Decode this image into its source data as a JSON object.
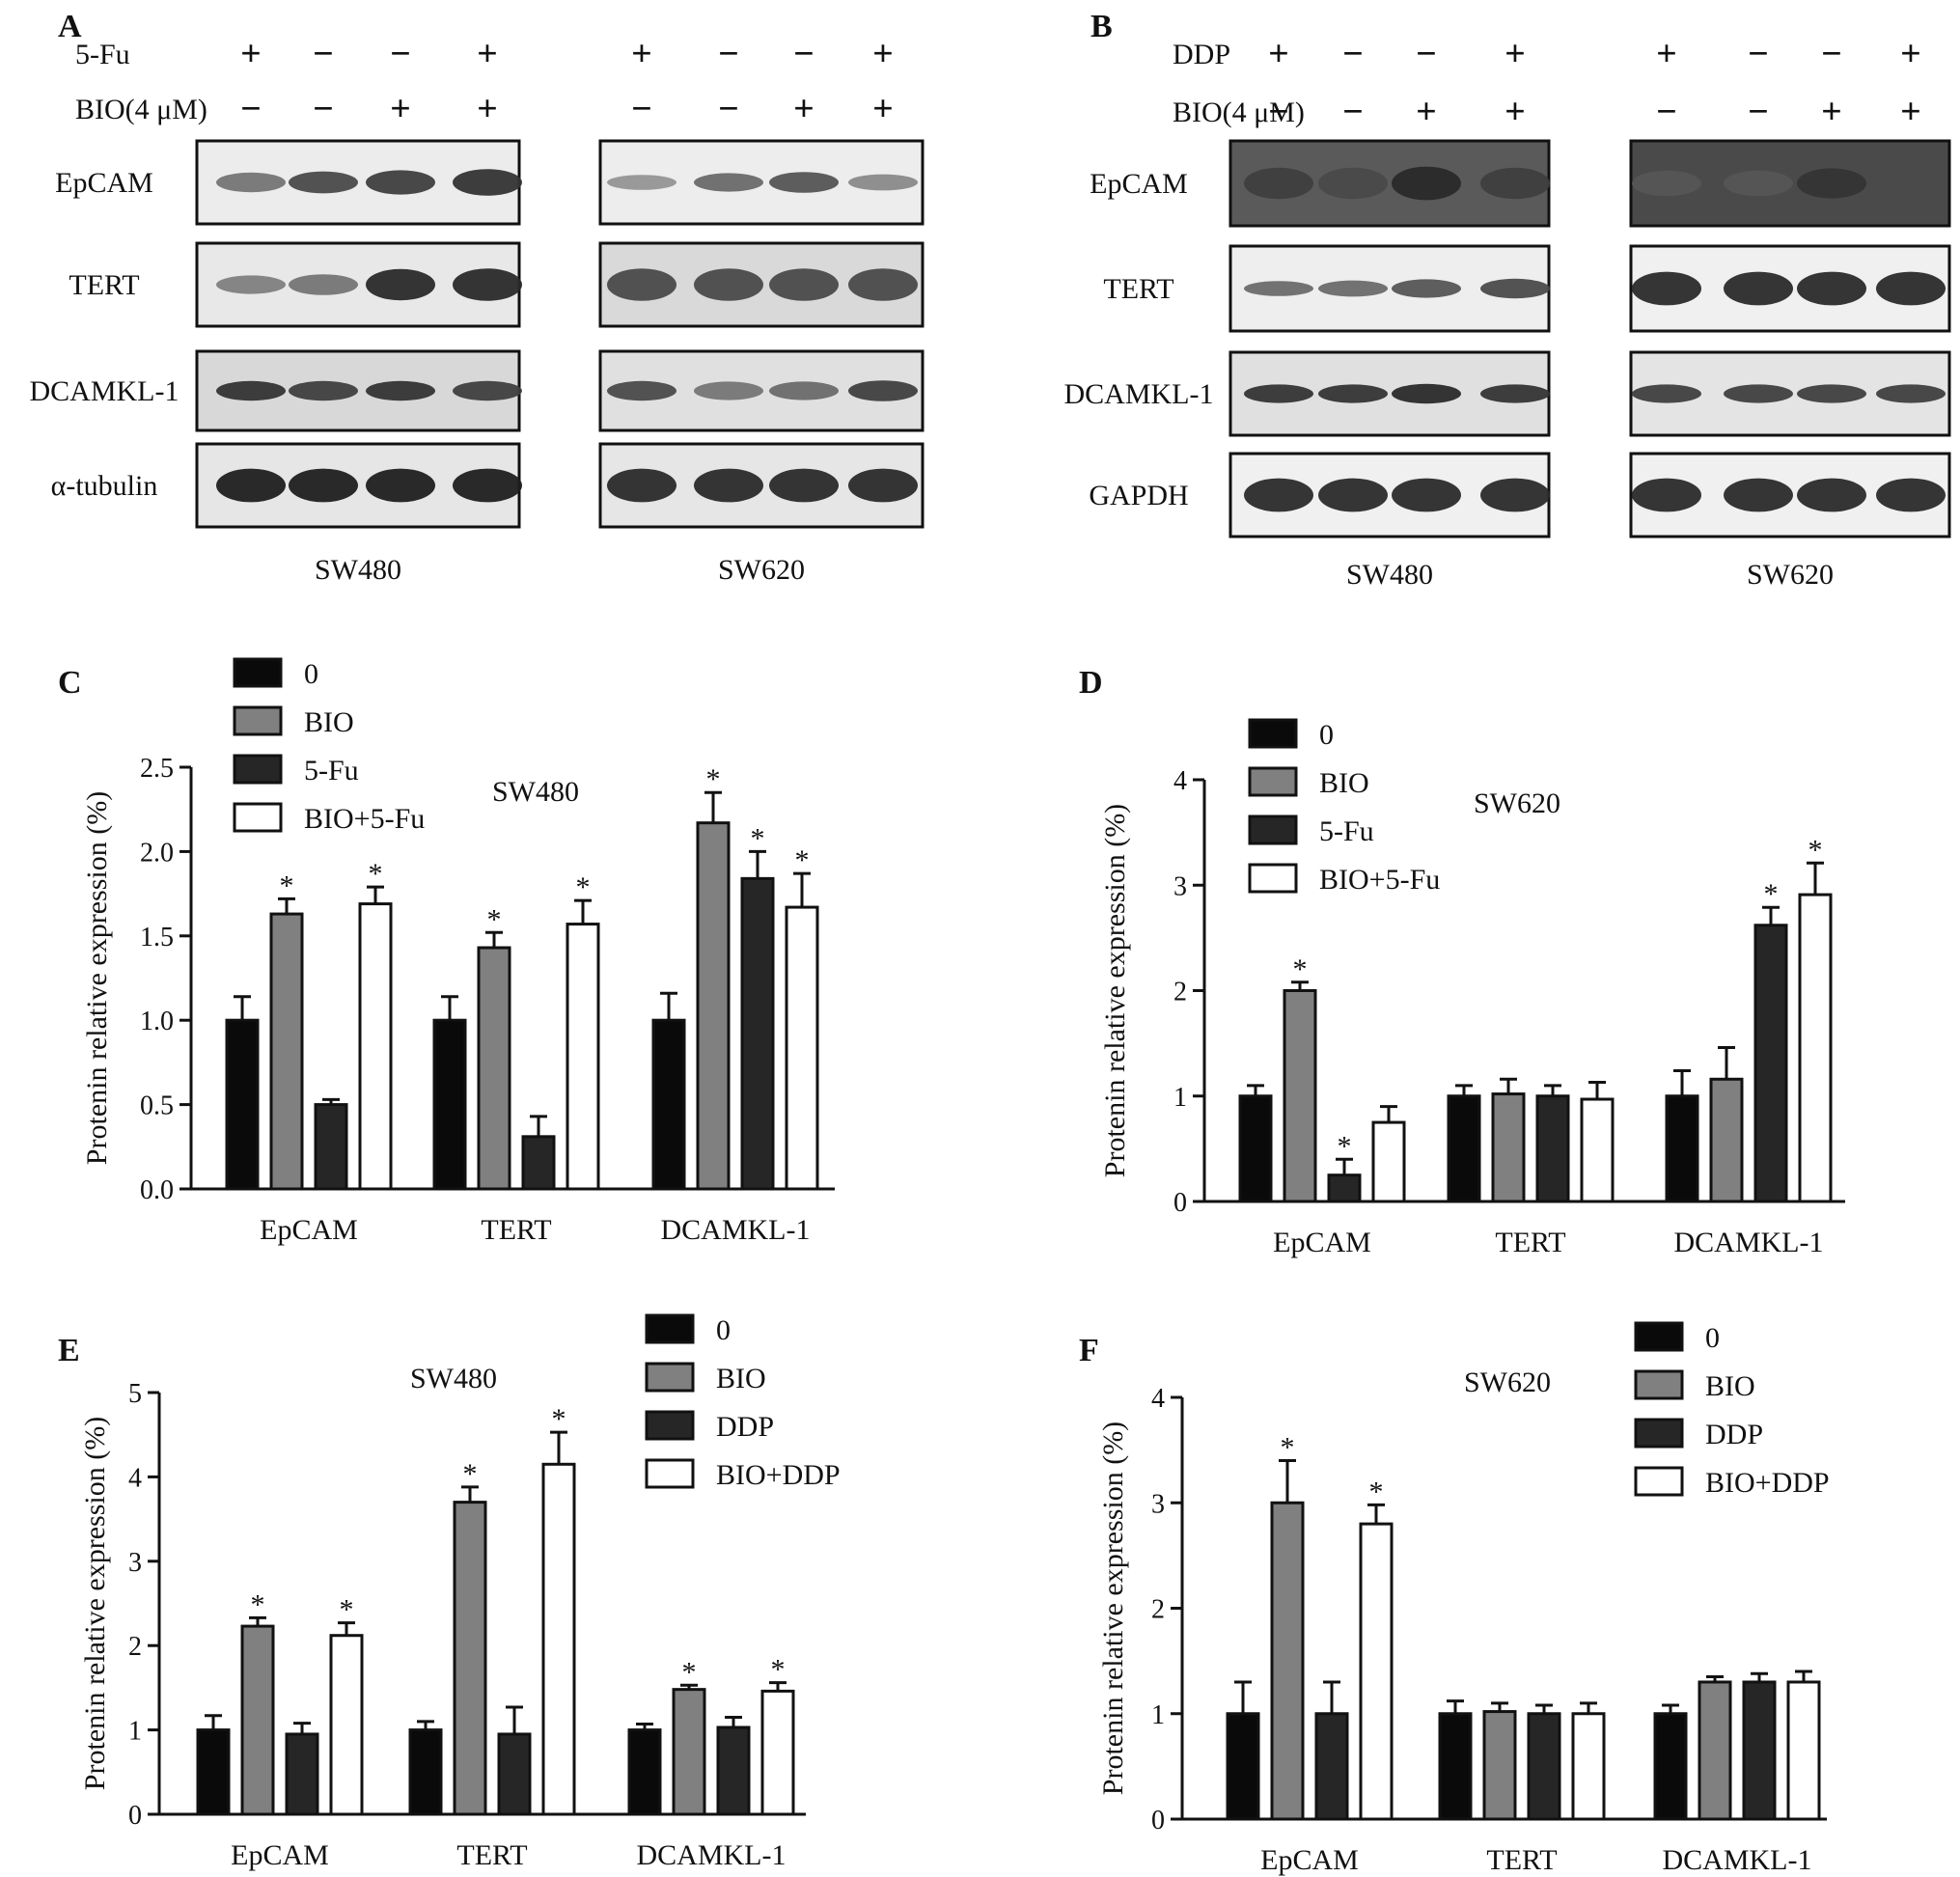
{
  "blots": {
    "A": {
      "letter": "A",
      "treatments": [
        {
          "label": "5-Fu",
          "left": [
            "+",
            "−",
            "−",
            "+"
          ],
          "right": [
            "+",
            "−",
            "−",
            "+"
          ]
        },
        {
          "label": "BIO(4 μM)",
          "left": [
            "−",
            "−",
            "+",
            "+"
          ],
          "right": [
            "−",
            "−",
            "+",
            "+"
          ]
        }
      ],
      "rows": [
        "EpCAM",
        "TERT",
        "DCAMKL-1",
        "α-tubulin"
      ],
      "cells": [
        "SW480",
        "SW620"
      ]
    },
    "B": {
      "letter": "B",
      "treatments": [
        {
          "label": "DDP",
          "left": [
            "+",
            "−",
            "−",
            "+"
          ],
          "right": [
            "+",
            "−",
            "−",
            "+"
          ]
        },
        {
          "label": "BIO(4 μM)",
          "left": [
            "−",
            "−",
            "+",
            "+"
          ],
          "right": [
            "−",
            "−",
            "+",
            "+"
          ]
        }
      ],
      "rows": [
        "EpCAM",
        "TERT",
        "DCAMKL-1",
        "GAPDH"
      ],
      "cells": [
        "SW480",
        "SW620"
      ]
    }
  },
  "chart_data": [
    {
      "panel": "C",
      "type": "bar",
      "title": "SW480",
      "xlabel": "",
      "ylabel": "Protenin relative expression (%)",
      "categories": [
        "EpCAM",
        "TERT",
        "DCAMKL-1"
      ],
      "ylim": [
        0,
        2.5
      ],
      "yticks": [
        "0.0",
        "0.5",
        "1.0",
        "1.5",
        "2.0",
        "2.5"
      ],
      "series": [
        {
          "name": "0",
          "color": "#0a0a0a",
          "values": [
            1.0,
            1.0,
            1.0
          ],
          "errors": [
            0.14,
            0.14,
            0.16
          ],
          "sig": [
            "",
            "",
            ""
          ]
        },
        {
          "name": "BIO",
          "color": "#808080",
          "values": [
            1.63,
            1.43,
            2.17
          ],
          "errors": [
            0.09,
            0.09,
            0.18
          ],
          "sig": [
            "*",
            "*",
            "*"
          ]
        },
        {
          "name": "5-Fu",
          "color": "#262626",
          "values": [
            0.5,
            0.31,
            1.84
          ],
          "errors": [
            0.03,
            0.12,
            0.16
          ],
          "sig": [
            "",
            "",
            "*"
          ]
        },
        {
          "name": "BIO+5-Fu",
          "color": "#ffffff",
          "values": [
            1.69,
            1.57,
            1.67
          ],
          "errors": [
            0.1,
            0.14,
            0.2
          ],
          "sig": [
            "*",
            "*",
            "*"
          ]
        }
      ]
    },
    {
      "panel": "D",
      "type": "bar",
      "title": "SW620",
      "xlabel": "",
      "ylabel": "Protenin relative expression (%)",
      "categories": [
        "EpCAM",
        "TERT",
        "DCAMKL-1"
      ],
      "ylim": [
        0,
        4
      ],
      "yticks": [
        "0",
        "1",
        "2",
        "3",
        "4"
      ],
      "series": [
        {
          "name": "0",
          "color": "#0a0a0a",
          "values": [
            1.0,
            1.0,
            1.0
          ],
          "errors": [
            0.1,
            0.1,
            0.24
          ],
          "sig": [
            "",
            "",
            ""
          ]
        },
        {
          "name": "BIO",
          "color": "#808080",
          "values": [
            2.0,
            1.02,
            1.16
          ],
          "errors": [
            0.08,
            0.14,
            0.3
          ],
          "sig": [
            "*",
            "",
            ""
          ]
        },
        {
          "name": "5-Fu",
          "color": "#262626",
          "values": [
            0.25,
            1.0,
            2.62
          ],
          "errors": [
            0.15,
            0.1,
            0.17
          ],
          "sig": [
            "*",
            "",
            "*"
          ]
        },
        {
          "name": "BIO+5-Fu",
          "color": "#ffffff",
          "values": [
            0.75,
            0.97,
            2.91
          ],
          "errors": [
            0.15,
            0.16,
            0.3
          ],
          "sig": [
            "",
            "",
            "*"
          ]
        }
      ]
    },
    {
      "panel": "E",
      "type": "bar",
      "title": "SW480",
      "xlabel": "",
      "ylabel": "Protenin relative expression (%)",
      "categories": [
        "EpCAM",
        "TERT",
        "DCAMKL-1"
      ],
      "ylim": [
        0,
        5
      ],
      "yticks": [
        "0",
        "1",
        "2",
        "3",
        "4",
        "5"
      ],
      "series": [
        {
          "name": "0",
          "color": "#0a0a0a",
          "values": [
            1.0,
            1.0,
            1.0
          ],
          "errors": [
            0.17,
            0.1,
            0.07
          ],
          "sig": [
            "",
            "",
            ""
          ]
        },
        {
          "name": "BIO",
          "color": "#808080",
          "values": [
            2.23,
            3.7,
            1.48
          ],
          "errors": [
            0.1,
            0.18,
            0.05
          ],
          "sig": [
            "*",
            "*",
            "*"
          ]
        },
        {
          "name": "DDP",
          "color": "#262626",
          "values": [
            0.95,
            0.95,
            1.03
          ],
          "errors": [
            0.13,
            0.32,
            0.12
          ],
          "sig": [
            "",
            "",
            ""
          ]
        },
        {
          "name": "BIO+DDP",
          "color": "#ffffff",
          "values": [
            2.12,
            4.15,
            1.46
          ],
          "errors": [
            0.15,
            0.38,
            0.1
          ],
          "sig": [
            "*",
            "*",
            "*"
          ]
        }
      ]
    },
    {
      "panel": "F",
      "type": "bar",
      "title": "SW620",
      "xlabel": "",
      "ylabel": "Protenin relative expression (%)",
      "categories": [
        "EpCAM",
        "TERT",
        "DCAMKL-1"
      ],
      "ylim": [
        0,
        4
      ],
      "yticks": [
        "0",
        "1",
        "2",
        "3",
        "4"
      ],
      "series": [
        {
          "name": "0",
          "color": "#0a0a0a",
          "values": [
            1.0,
            1.0,
            1.0
          ],
          "errors": [
            0.3,
            0.12,
            0.08
          ],
          "sig": [
            "",
            "",
            ""
          ]
        },
        {
          "name": "BIO",
          "color": "#808080",
          "values": [
            3.0,
            1.02,
            1.3
          ],
          "errors": [
            0.4,
            0.08,
            0.05
          ],
          "sig": [
            "*",
            "",
            ""
          ]
        },
        {
          "name": "DDP",
          "color": "#262626",
          "values": [
            1.0,
            1.0,
            1.3
          ],
          "errors": [
            0.3,
            0.08,
            0.08
          ],
          "sig": [
            "",
            "",
            ""
          ]
        },
        {
          "name": "BIO+DDP",
          "color": "#ffffff",
          "values": [
            2.8,
            1.0,
            1.3
          ],
          "errors": [
            0.18,
            0.1,
            0.1
          ],
          "sig": [
            "*",
            "",
            ""
          ]
        }
      ]
    }
  ]
}
